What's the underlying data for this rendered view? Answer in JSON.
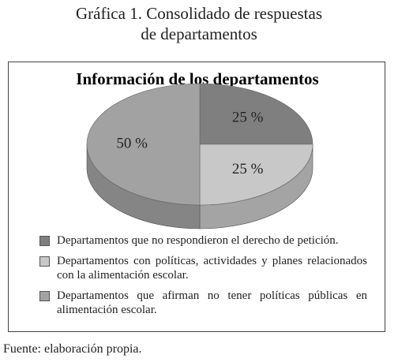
{
  "figure_title": [
    "Gráfica 1. Consolidado de respuestas",
    "de departamentos"
  ],
  "chart_data": {
    "type": "pie",
    "title": "Información de los departamentos",
    "series": [
      {
        "name": "Departamentos que no respondieron el derecho de petición.",
        "color": "#7f7f7f",
        "values": [
          25
        ],
        "value_labels": [
          "25 %"
        ]
      },
      {
        "name": "Departamentos con políticas, actividades y planes relacionados con la alimentación escolar.",
        "color": "#c8c8c8",
        "values": [
          25
        ],
        "value_labels": [
          "25 %"
        ]
      },
      {
        "name": "Departamentos que afirman no tener políticas públicas en alimentación escolar.",
        "color": "#a2a2a2",
        "values": [
          50
        ],
        "value_labels": [
          "50 %"
        ]
      }
    ]
  },
  "source": "Fuente: elaboración propia."
}
